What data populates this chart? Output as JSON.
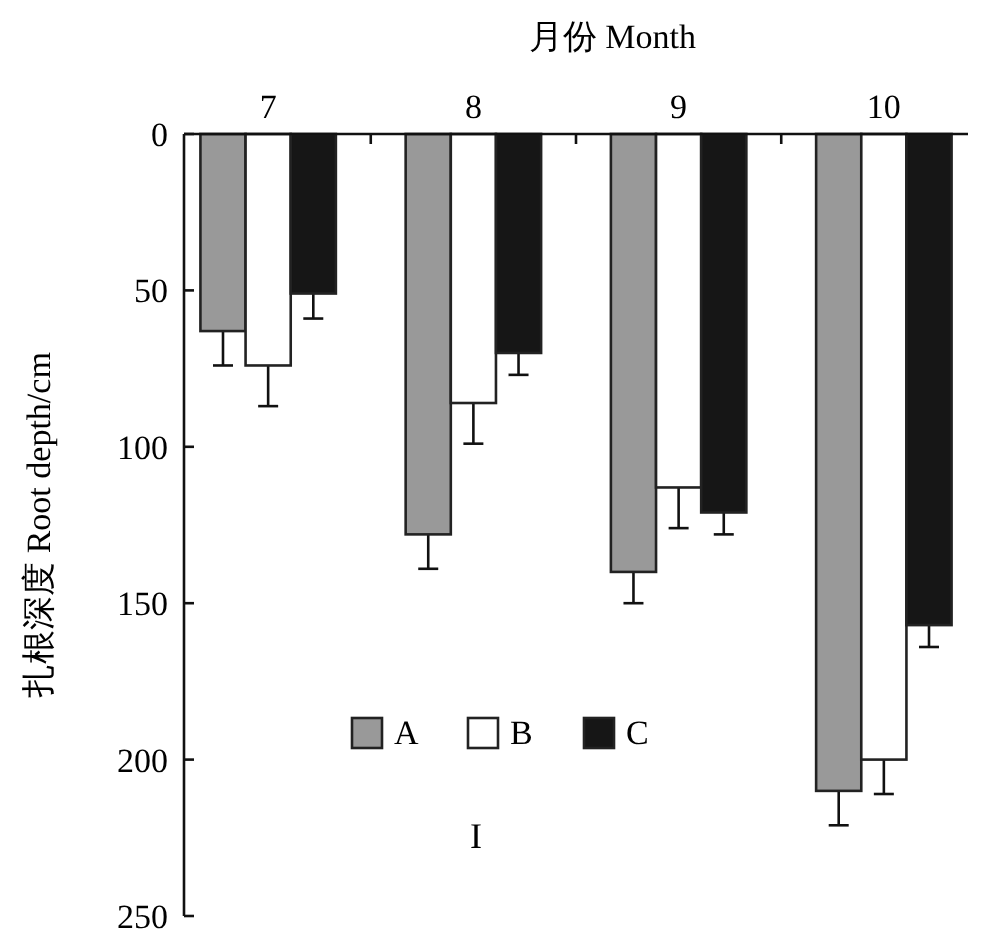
{
  "chart_data": {
    "type": "bar",
    "xlabel": "月份 Month",
    "ylabel": "扎根深度 Root depth/cm",
    "categories": [
      "7",
      "8",
      "9",
      "10"
    ],
    "series": [
      {
        "name": "A",
        "color": "#999999",
        "values": [
          63,
          128,
          140,
          210
        ],
        "errors": [
          [
            63,
            74
          ],
          [
            128,
            139
          ],
          [
            140,
            150
          ],
          [
            210,
            221
          ]
        ]
      },
      {
        "name": "B",
        "color": "#ffffff",
        "values": [
          74,
          86,
          113,
          200
        ],
        "errors": [
          [
            74,
            87
          ],
          [
            86,
            99
          ],
          [
            113,
            126
          ],
          [
            200,
            211
          ]
        ]
      },
      {
        "name": "C",
        "color": "#161616",
        "values": [
          51,
          70,
          121,
          157
        ],
        "errors": [
          [
            51,
            59
          ],
          [
            70,
            77
          ],
          [
            121,
            128
          ],
          [
            157,
            164
          ]
        ]
      }
    ],
    "ylim": [
      250,
      0
    ],
    "yticks": [
      0,
      50,
      100,
      150,
      200,
      250
    ],
    "legend": "left",
    "annotations": [
      "I"
    ]
  }
}
